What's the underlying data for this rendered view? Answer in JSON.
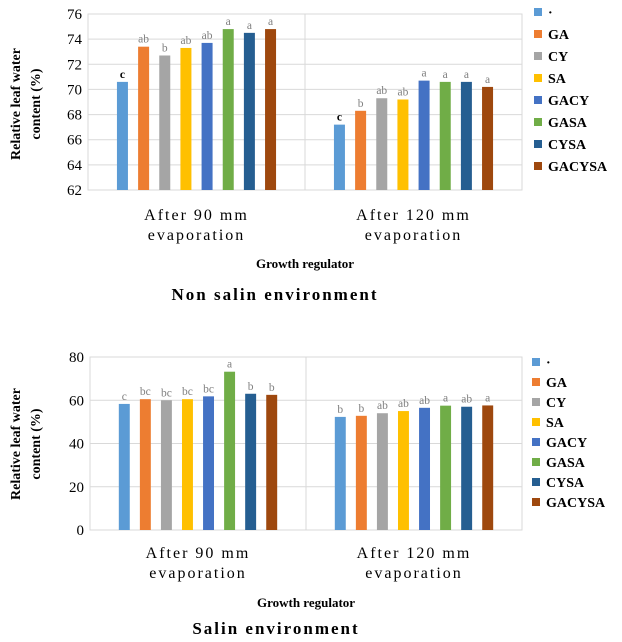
{
  "chart_data": [
    {
      "type": "bar",
      "caption": "Non salin environment",
      "xlabel": "Growth regulator",
      "ylabel": "Relative leaf water content (%)",
      "ylim": [
        62,
        76
      ],
      "yticks": [
        62,
        64,
        66,
        68,
        70,
        72,
        74,
        76
      ],
      "grid": true,
      "legend": "right",
      "categories": [
        "After 90 mm evaporation",
        "After 120 mm evaporation"
      ],
      "series": [
        {
          "name": "·",
          "color": "#5b9bd5",
          "values": [
            70.6,
            67.2
          ],
          "letters": [
            "c",
            "c"
          ]
        },
        {
          "name": "GA",
          "color": "#ed7d31",
          "values": [
            73.4,
            68.3
          ],
          "letters": [
            "ab",
            "b"
          ]
        },
        {
          "name": "CY",
          "color": "#a5a5a5",
          "values": [
            72.7,
            69.3
          ],
          "letters": [
            "b",
            "ab"
          ]
        },
        {
          "name": "SA",
          "color": "#ffc000",
          "values": [
            73.3,
            69.2
          ],
          "letters": [
            "ab",
            "ab"
          ]
        },
        {
          "name": "GACY",
          "color": "#4472c4",
          "values": [
            73.7,
            70.7
          ],
          "letters": [
            "ab",
            "a"
          ]
        },
        {
          "name": "GASA",
          "color": "#70ad47",
          "values": [
            74.8,
            70.6
          ],
          "letters": [
            "a",
            "a"
          ]
        },
        {
          "name": "CYSA",
          "color": "#255e91",
          "values": [
            74.5,
            70.6
          ],
          "letters": [
            "a",
            "a"
          ]
        },
        {
          "name": "GACYSA",
          "color": "#9e480e",
          "values": [
            74.8,
            70.2
          ],
          "letters": [
            "a",
            "a"
          ]
        }
      ]
    },
    {
      "type": "bar",
      "caption": "Salin environment",
      "xlabel": "Growth regulator",
      "ylabel": "Relative leaf water content (%)",
      "ylim": [
        0,
        80
      ],
      "yticks": [
        0,
        20,
        40,
        60,
        80
      ],
      "grid": true,
      "legend": "right",
      "categories": [
        "After 90 mm evaporation",
        "After 120 mm evaporation"
      ],
      "series": [
        {
          "name": "·",
          "color": "#5b9bd5",
          "values": [
            58.3,
            52.3
          ],
          "letters": [
            "c",
            "b"
          ]
        },
        {
          "name": "GA",
          "color": "#ed7d31",
          "values": [
            60.5,
            52.8
          ],
          "letters": [
            "bc",
            "b"
          ]
        },
        {
          "name": "CY",
          "color": "#a5a5a5",
          "values": [
            60.0,
            54.0
          ],
          "letters": [
            "bc",
            "ab"
          ]
        },
        {
          "name": "SA",
          "color": "#ffc000",
          "values": [
            60.5,
            55.0
          ],
          "letters": [
            "bc",
            "ab"
          ]
        },
        {
          "name": "GACY",
          "color": "#4472c4",
          "values": [
            61.8,
            56.5
          ],
          "letters": [
            "bc",
            "ab"
          ]
        },
        {
          "name": "GASA",
          "color": "#70ad47",
          "values": [
            73.2,
            57.5
          ],
          "letters": [
            "a",
            "a"
          ]
        },
        {
          "name": "CYSA",
          "color": "#255e91",
          "values": [
            63.0,
            57.0
          ],
          "letters": [
            "b",
            "ab"
          ]
        },
        {
          "name": "GACYSA",
          "color": "#9e480e",
          "values": [
            62.5,
            57.6
          ],
          "letters": [
            "b",
            "a"
          ]
        }
      ]
    }
  ]
}
